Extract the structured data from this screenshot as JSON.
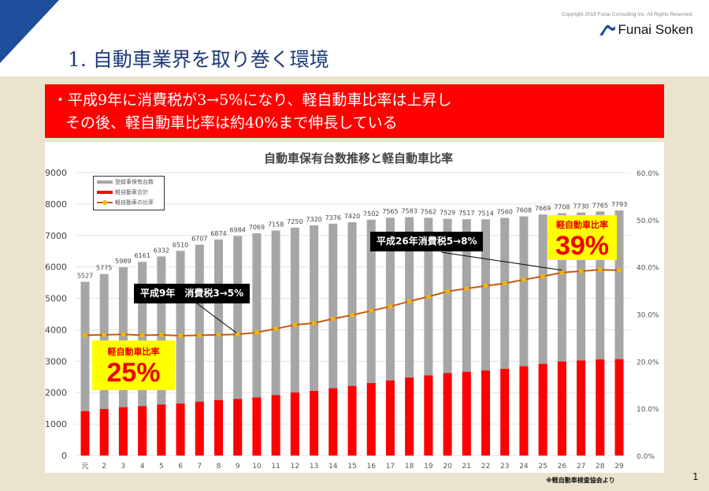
{
  "header": {
    "title": "1. 自動車業界を取り巻く環境",
    "copyright": "Copyright 2019  Funai Consulting Inc. All  Rights  Reserved.",
    "logo_text": "Funai Soken",
    "accent_color": "#1f4e9c"
  },
  "banner": {
    "line1": "・平成9年に消費税が3→5%になり、軽自動車比率は上昇し",
    "line2": "その後、軽自動車比率は約40%まで伸長している",
    "color": "#ff0000"
  },
  "annotations": {
    "tax1": "平成9年　消費税3→5%",
    "tax2": "平成26年消費税5→8%",
    "box1_label": "軽自動車比率",
    "box1_value": "25%",
    "box2_label": "軽自動車比率",
    "box2_value": "39%"
  },
  "footer": {
    "source": "※軽自動車検査協会より",
    "page": "1"
  },
  "chart_data": {
    "type": "bar",
    "title": "自動車保有台数推移と軽自動車比率",
    "categories": [
      "元",
      "2",
      "3",
      "4",
      "5",
      "6",
      "7",
      "8",
      "9",
      "10",
      "11",
      "12",
      "13",
      "14",
      "15",
      "16",
      "17",
      "18",
      "19",
      "20",
      "21",
      "22",
      "23",
      "24",
      "25",
      "26",
      "27",
      "28",
      "29"
    ],
    "ylim": [
      0,
      9000
    ],
    "yticks": [
      "0",
      "1000",
      "2000",
      "3000",
      "4000",
      "5000",
      "6000",
      "7000",
      "8000",
      "9000"
    ],
    "y2lim": [
      0,
      60
    ],
    "y2ticks": [
      "0.0%",
      "10.0%",
      "20.0%",
      "30.0%",
      "40.0%",
      "50.0%",
      "60.0%"
    ],
    "grid": true,
    "legend": "top-left",
    "series": [
      {
        "name": "登録車保有台数",
        "type": "bar",
        "color": "#a6a6a6",
        "values": [
          5527,
          5775,
          5989,
          6161,
          6332,
          6510,
          6707,
          6874,
          6984,
          7069,
          7158,
          7250,
          7320,
          7376,
          7420,
          7502,
          7565,
          7583,
          7562,
          7529,
          7517,
          7514,
          7560,
          7608,
          7669,
          7708,
          7730,
          7765,
          7793
        ]
      },
      {
        "name": "軽自動車合計",
        "type": "bar",
        "color": "#ff0000",
        "values": [
          1411,
          1480,
          1537,
          1571,
          1622,
          1654,
          1712,
          1762,
          1797,
          1847,
          1922,
          2005,
          2055,
          2138,
          2213,
          2305,
          2388,
          2481,
          2547,
          2622,
          2664,
          2706,
          2756,
          2839,
          2914,
          2990,
          3023,
          3056,
          3065
        ]
      },
      {
        "name": "軽自動車の比率",
        "type": "line",
        "axis": "right",
        "color": "#c55a11",
        "marker_color": "#f4b400",
        "values": [
          25.5,
          25.6,
          25.7,
          25.5,
          25.6,
          25.4,
          25.5,
          25.6,
          25.7,
          26.1,
          26.9,
          27.7,
          28.1,
          29.0,
          29.8,
          30.7,
          31.6,
          32.7,
          33.7,
          34.8,
          35.4,
          36.0,
          36.5,
          37.3,
          38.0,
          38.8,
          39.1,
          39.4,
          39.3
        ]
      }
    ]
  }
}
